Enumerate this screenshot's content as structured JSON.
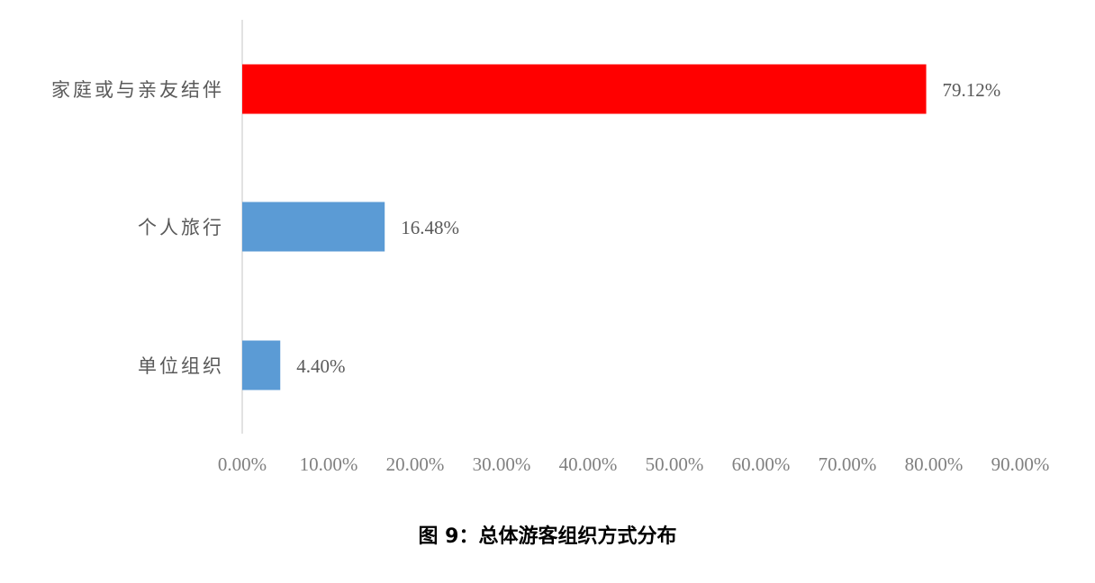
{
  "chart_data": {
    "type": "bar",
    "orientation": "horizontal",
    "categories": [
      "家庭或与亲友结伴",
      "个人旅行",
      "单位组织"
    ],
    "values": [
      79.12,
      16.48,
      4.4
    ],
    "data_labels": [
      "79.12%",
      "16.48%",
      "4.40%"
    ],
    "bar_colors": [
      "#FF0000",
      "#5B9BD5",
      "#5B9BD5"
    ],
    "xlim": [
      0,
      90
    ],
    "x_ticks": [
      0,
      10,
      20,
      30,
      40,
      50,
      60,
      70,
      80,
      90
    ],
    "x_tick_labels": [
      "0.00%",
      "10.00%",
      "20.00%",
      "30.00%",
      "40.00%",
      "50.00%",
      "60.00%",
      "70.00%",
      "80.00%",
      "90.00%"
    ],
    "grid": false,
    "legend": "none"
  },
  "caption": "图 9：总体游客组织方式分布"
}
